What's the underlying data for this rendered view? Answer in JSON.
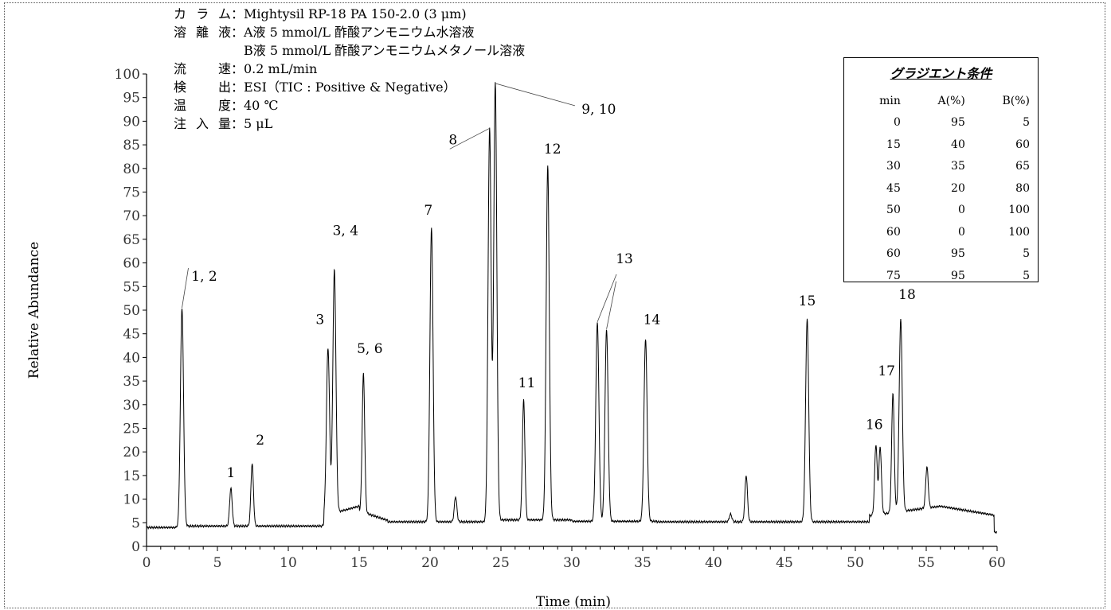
{
  "chart_data": {
    "type": "line",
    "title": "",
    "xlabel": "Time (min)",
    "ylabel": "Relative Abundance",
    "xlim": [
      0,
      60
    ],
    "ylim": [
      0,
      100
    ],
    "x_ticks": [
      0,
      5,
      10,
      15,
      20,
      25,
      30,
      35,
      40,
      45,
      50,
      55,
      60
    ],
    "y_ticks": [
      0,
      5,
      10,
      15,
      20,
      25,
      30,
      35,
      40,
      45,
      50,
      55,
      60,
      65,
      70,
      75,
      80,
      85,
      90,
      95,
      100
    ],
    "grid": false,
    "baseline": 4.5,
    "peaks": [
      {
        "label": "1, 2",
        "time": 2.5,
        "height": 50.5
      },
      {
        "label": "1",
        "time": 5.95,
        "height": 12.3
      },
      {
        "label": "2",
        "time": 7.45,
        "height": 17.5
      },
      {
        "label": "3",
        "time": 12.8,
        "height": 42.0
      },
      {
        "label": "3, 4",
        "time": 13.25,
        "height": 58.5
      },
      {
        "label": "5, 6",
        "time": 15.3,
        "height": 36.5
      },
      {
        "label": "7",
        "time": 20.1,
        "height": 67.5
      },
      {
        "label": "",
        "time": 21.8,
        "height": 10.5
      },
      {
        "label": "8",
        "time": 24.2,
        "height": 88.5
      },
      {
        "label": "9, 10",
        "time": 24.6,
        "height": 98.0
      },
      {
        "label": "11",
        "time": 26.6,
        "height": 31.0
      },
      {
        "label": "12",
        "time": 28.3,
        "height": 80.5
      },
      {
        "label": "13",
        "time": 31.8,
        "height": 47.5
      },
      {
        "label": "13",
        "time": 32.45,
        "height": 46.0
      },
      {
        "label": "14",
        "time": 35.2,
        "height": 44.0
      },
      {
        "label": "",
        "time": 41.2,
        "height": 6.8
      },
      {
        "label": "",
        "time": 42.3,
        "height": 15.0
      },
      {
        "label": "15",
        "time": 46.6,
        "height": 48.0
      },
      {
        "label": "16",
        "time": 51.45,
        "height": 21.5
      },
      {
        "label": "",
        "time": 51.75,
        "height": 21.0
      },
      {
        "label": "17",
        "time": 52.65,
        "height": 32.5
      },
      {
        "label": "18",
        "time": 53.2,
        "height": 48.0
      },
      {
        "label": "",
        "time": 55.05,
        "height": 16.8
      }
    ],
    "annotations": [
      {
        "text": "1, 2",
        "peak_index": 0
      },
      {
        "text": "1",
        "peak_index": 1
      },
      {
        "text": "2",
        "peak_index": 2
      },
      {
        "text": "3",
        "peak_index": 3
      },
      {
        "text": "3, 4",
        "peak_index": 4
      },
      {
        "text": "5, 6",
        "peak_index": 5
      },
      {
        "text": "7",
        "peak_index": 6
      },
      {
        "text": "8",
        "peak_index": 8
      },
      {
        "text": "9, 10",
        "peak_index": 9
      },
      {
        "text": "11",
        "peak_index": 10
      },
      {
        "text": "12",
        "peak_index": 11
      },
      {
        "text": "13",
        "peak_index": 12
      },
      {
        "text": "14",
        "peak_index": 14
      },
      {
        "text": "15",
        "peak_index": 17
      },
      {
        "text": "16",
        "peak_index": 18
      },
      {
        "text": "17",
        "peak_index": 20
      },
      {
        "text": "18",
        "peak_index": 21
      }
    ]
  },
  "conditions": [
    {
      "label": "カラム",
      "value": "Mightysil RP-18 PA 150-2.0 (3 μm)"
    },
    {
      "label": "溶離液",
      "value": "A液 5 mmol/L 酢酸アンモニウム水溶液"
    },
    {
      "label": "",
      "value": "B液 5 mmol/L 酢酸アンモニウムメタノール溶液"
    },
    {
      "label": "流　速",
      "value": "0.2 mL/min"
    },
    {
      "label": "検　出",
      "value": "ESI（TIC : Positive & Negative）"
    },
    {
      "label": "温　度",
      "value": "40 ℃"
    },
    {
      "label": "注入量",
      "value": "5 μL"
    }
  ],
  "separator": "：",
  "gradient": {
    "title": "グラジエント条件",
    "headers": [
      "min",
      "A(%)",
      "B(%)"
    ],
    "rows": [
      [
        "0",
        "95",
        "5"
      ],
      [
        "15",
        "40",
        "60"
      ],
      [
        "30",
        "35",
        "65"
      ],
      [
        "45",
        "20",
        "80"
      ],
      [
        "50",
        "0",
        "100"
      ],
      [
        "60",
        "0",
        "100"
      ],
      [
        "60",
        "95",
        "5"
      ],
      [
        "75",
        "95",
        "5"
      ]
    ]
  }
}
